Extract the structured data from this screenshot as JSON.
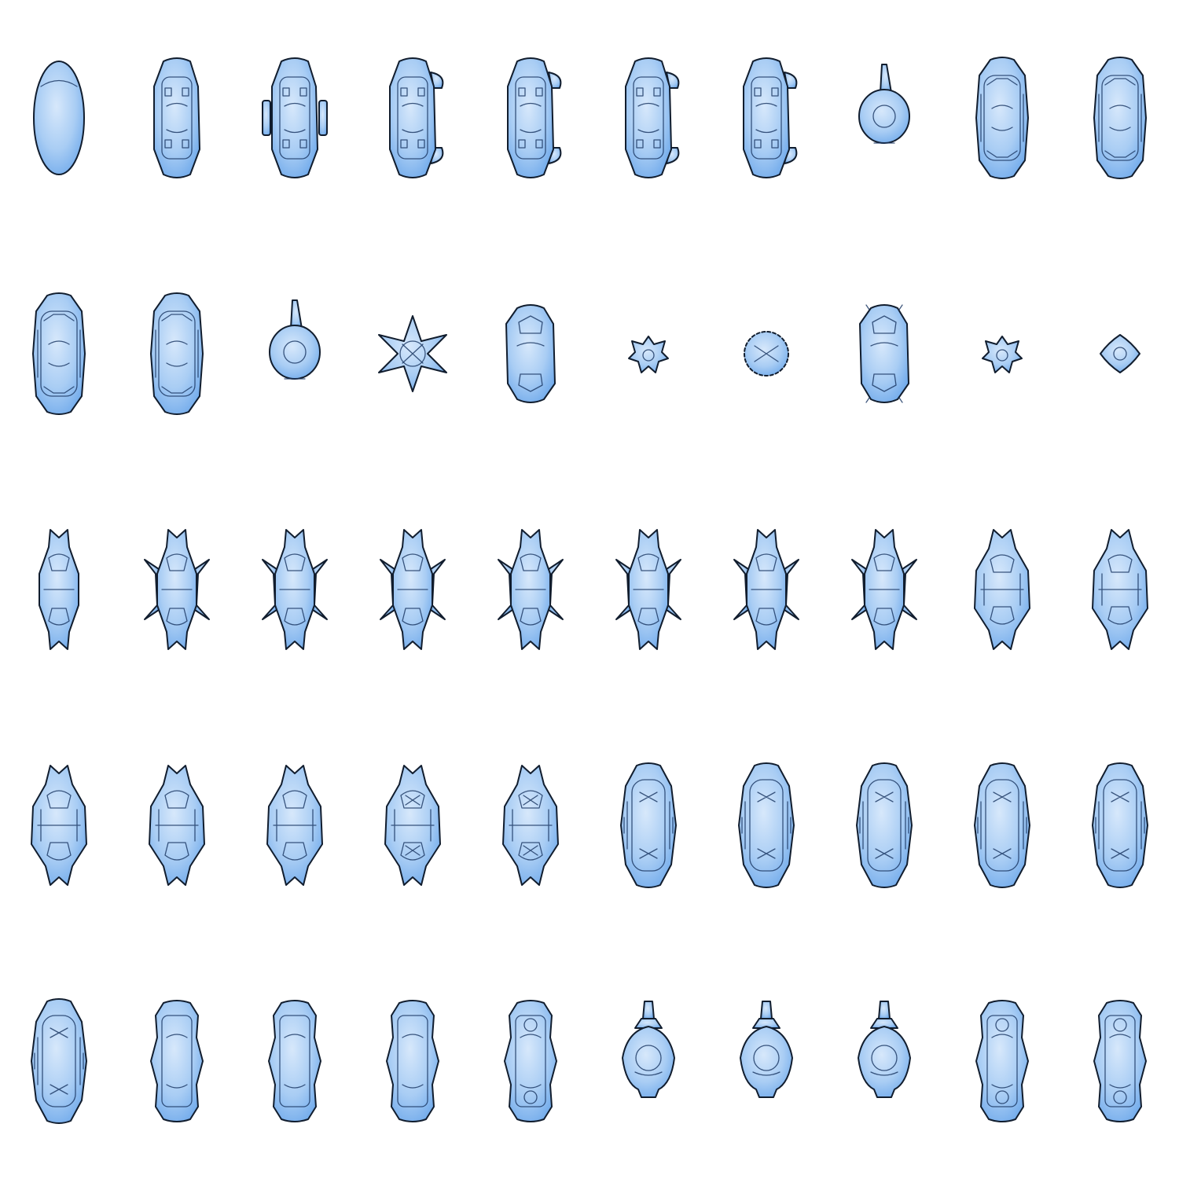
{
  "sheet": {
    "background": "#ffffff",
    "rows": 5,
    "columns": 10,
    "colors": {
      "fill_light": "#d7e8fb",
      "fill_mid": "#a9cdf4",
      "fill_dark": "#6aa6ea",
      "outline": "#111d2e",
      "detail": "#1f3b66"
    },
    "sprites": [
      {
        "kind": "egg"
      },
      {
        "kind": "hull"
      },
      {
        "kind": "hull-wings"
      },
      {
        "kind": "hull-fins"
      },
      {
        "kind": "hull-fins"
      },
      {
        "kind": "hull-fins"
      },
      {
        "kind": "hull-fins"
      },
      {
        "kind": "turret-tall"
      },
      {
        "kind": "hull-ornate"
      },
      {
        "kind": "hull-ornate"
      },
      {
        "kind": "hull-ornate"
      },
      {
        "kind": "hull-ornate"
      },
      {
        "kind": "turret-tall"
      },
      {
        "kind": "star"
      },
      {
        "kind": "pod"
      },
      {
        "kind": "gear-small"
      },
      {
        "kind": "ring-small"
      },
      {
        "kind": "pod-notched"
      },
      {
        "kind": "gear-small"
      },
      {
        "kind": "diamond-small"
      },
      {
        "kind": "bug-thin"
      },
      {
        "kind": "bug-wide"
      },
      {
        "kind": "bug-wide"
      },
      {
        "kind": "bug-wide"
      },
      {
        "kind": "bug-wide"
      },
      {
        "kind": "bug-wide"
      },
      {
        "kind": "bug-wide"
      },
      {
        "kind": "bug-wide"
      },
      {
        "kind": "bug-round"
      },
      {
        "kind": "bug-round"
      },
      {
        "kind": "bug-round"
      },
      {
        "kind": "bug-round"
      },
      {
        "kind": "bug-round"
      },
      {
        "kind": "bug-mesh"
      },
      {
        "kind": "bug-mesh"
      },
      {
        "kind": "armored"
      },
      {
        "kind": "armored"
      },
      {
        "kind": "armored"
      },
      {
        "kind": "armored"
      },
      {
        "kind": "armored"
      },
      {
        "kind": "armored"
      },
      {
        "kind": "barrel"
      },
      {
        "kind": "barrel"
      },
      {
        "kind": "barrel"
      },
      {
        "kind": "barrel-dots"
      },
      {
        "kind": "turret-short"
      },
      {
        "kind": "turret-short"
      },
      {
        "kind": "turret-short"
      },
      {
        "kind": "barrel-dots"
      },
      {
        "kind": "barrel-dots"
      }
    ]
  }
}
